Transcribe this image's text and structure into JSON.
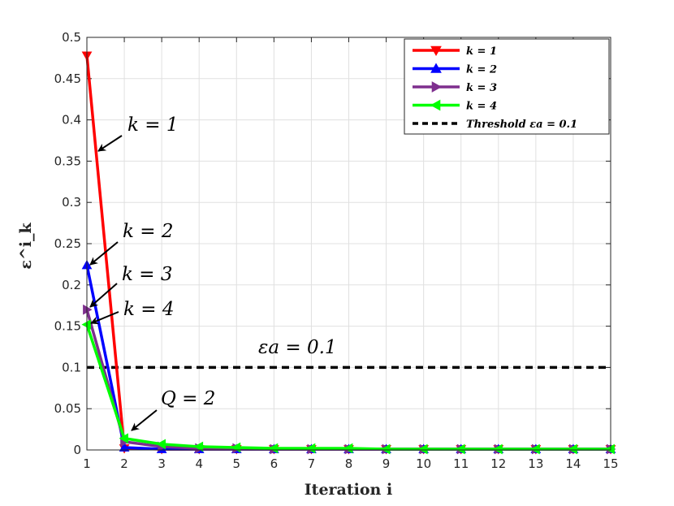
{
  "chart_data": {
    "type": "line",
    "xlabel": "Iteration i",
    "ylabel": "ε^i_k",
    "xlim": [
      1,
      15
    ],
    "ylim": [
      0,
      0.5
    ],
    "xticks": [
      "1",
      "2",
      "3",
      "4",
      "5",
      "6",
      "7",
      "8",
      "9",
      "10",
      "11",
      "12",
      "13",
      "14",
      "15"
    ],
    "yticks": [
      "0",
      "0.05",
      "0.1",
      "0.15",
      "0.2",
      "0.25",
      "0.3",
      "0.35",
      "0.4",
      "0.45",
      "0.5"
    ],
    "grid": true,
    "legend_position": "top-right",
    "x": [
      1,
      2,
      3,
      4,
      5,
      6,
      7,
      8,
      9,
      10,
      11,
      12,
      13,
      14,
      15
    ],
    "series": [
      {
        "name": "k = 1",
        "color": "#ff0000",
        "marker": "triangle-down",
        "values": [
          0.478,
          0.002,
          0.001,
          0.001,
          0.001,
          0.001,
          0.001,
          0.001,
          0.001,
          0.001,
          0.001,
          0.001,
          0.001,
          0.001,
          0.001
        ]
      },
      {
        "name": "k = 2",
        "color": "#0000ff",
        "marker": "triangle-up",
        "values": [
          0.224,
          0.003,
          0.001,
          0.001,
          0.001,
          0.001,
          0.001,
          0.001,
          0.001,
          0.001,
          0.001,
          0.001,
          0.001,
          0.001,
          0.001
        ]
      },
      {
        "name": "k = 3",
        "color": "#7e2f8e",
        "marker": "triangle-right",
        "values": [
          0.17,
          0.01,
          0.004,
          0.002,
          0.002,
          0.001,
          0.001,
          0.001,
          0.001,
          0.001,
          0.001,
          0.001,
          0.001,
          0.001,
          0.001
        ]
      },
      {
        "name": "k = 4",
        "color": "#00ff00",
        "marker": "triangle-left",
        "values": [
          0.152,
          0.014,
          0.007,
          0.004,
          0.003,
          0.002,
          0.002,
          0.002,
          0.001,
          0.001,
          0.001,
          0.001,
          0.001,
          0.001,
          0.001
        ]
      }
    ],
    "threshold": {
      "name": "Threshold εa = 0.1",
      "value": 0.1,
      "color": "#000000",
      "style": "dashed"
    },
    "annotations": [
      {
        "text": "k = 1",
        "x": 1.35,
        "y": 0.36
      },
      {
        "text": "k = 2",
        "x": 1.0,
        "y": 0.224
      },
      {
        "text": "k = 3",
        "x": 1.0,
        "y": 0.172
      },
      {
        "text": "k = 4",
        "x": 1.0,
        "y": 0.153
      },
      {
        "text": "Q = 2",
        "x": 2.1,
        "y": 0.022
      },
      {
        "text": "εa = 0.1",
        "x": 5.6,
        "y": 0.118
      }
    ]
  }
}
